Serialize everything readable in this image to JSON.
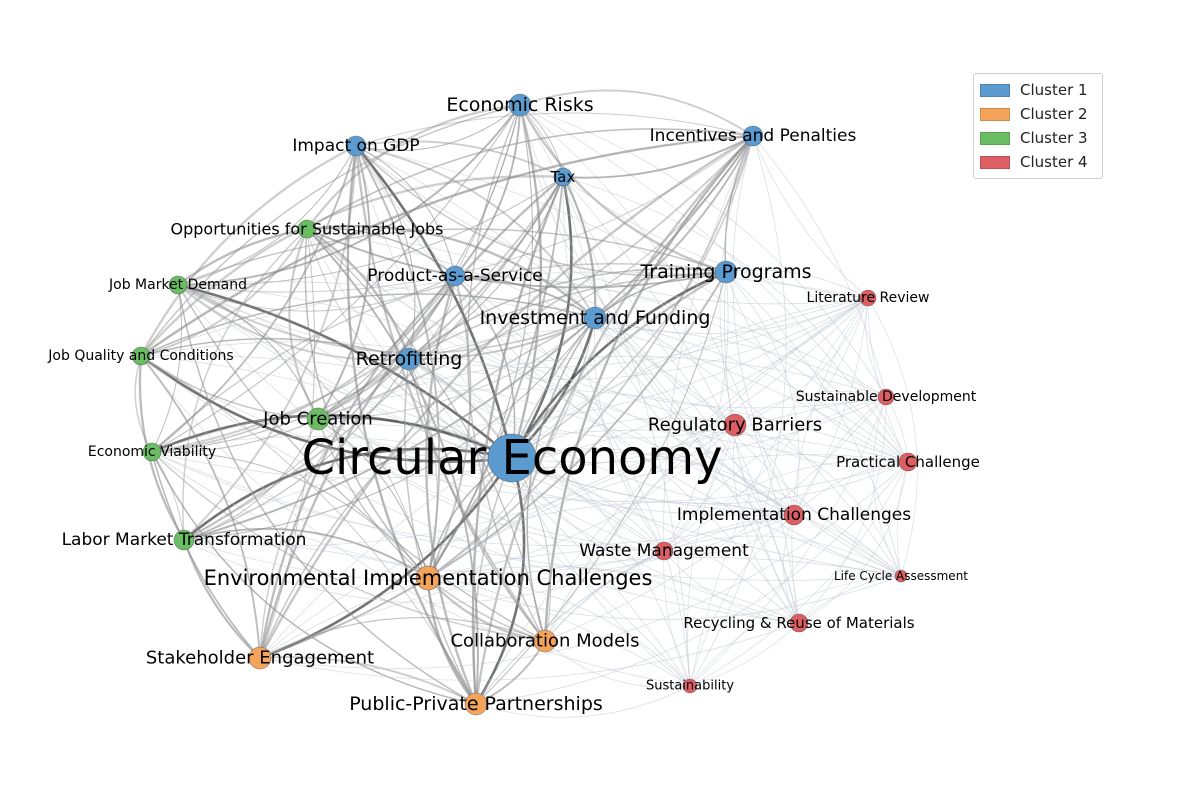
{
  "clusters": [
    {
      "name": "Cluster 1",
      "color": "#5b9bd0"
    },
    {
      "name": "Cluster 2",
      "color": "#f4a35a"
    },
    {
      "name": "Cluster 3",
      "color": "#6bbd63"
    },
    {
      "name": "Cluster 4",
      "color": "#de5f63"
    }
  ],
  "nodes": [
    {
      "id": "ce",
      "label": "Circular Economy",
      "cluster": 1
    },
    {
      "id": "er",
      "label": "Economic Risks",
      "cluster": 1
    },
    {
      "id": "gdp",
      "label": "Impact on GDP",
      "cluster": 1
    },
    {
      "id": "ip",
      "label": "Incentives and Penalties",
      "cluster": 1
    },
    {
      "id": "tax",
      "label": "Tax",
      "cluster": 1
    },
    {
      "id": "paas",
      "label": "Product-as-a-Service",
      "cluster": 1
    },
    {
      "id": "tp",
      "label": "Training Programs",
      "cluster": 1
    },
    {
      "id": "if",
      "label": "Investment and Funding",
      "cluster": 1
    },
    {
      "id": "ret",
      "label": "Retrofitting",
      "cluster": 1
    },
    {
      "id": "osj",
      "label": "Opportunities for Sustainable Jobs",
      "cluster": 3
    },
    {
      "id": "jmd",
      "label": "Job Market Demand",
      "cluster": 3
    },
    {
      "id": "jqc",
      "label": "Job Quality and Conditions",
      "cluster": 3
    },
    {
      "id": "jc",
      "label": "Job Creation",
      "cluster": 3
    },
    {
      "id": "ev",
      "label": "Economic Viability",
      "cluster": 3
    },
    {
      "id": "lmt",
      "label": "Labor Market Transformation",
      "cluster": 3
    },
    {
      "id": "eic",
      "label": "Environmental Implementation Challenges",
      "cluster": 2
    },
    {
      "id": "se",
      "label": "Stakeholder Engagement",
      "cluster": 2
    },
    {
      "id": "cm",
      "label": "Collaboration Models",
      "cluster": 2
    },
    {
      "id": "ppp",
      "label": "Public-Private Partnerships",
      "cluster": 2
    },
    {
      "id": "lr",
      "label": "Literature Review",
      "cluster": 4
    },
    {
      "id": "sd",
      "label": "Sustainable Development",
      "cluster": 4
    },
    {
      "id": "rb",
      "label": "Regulatory Barriers",
      "cluster": 4
    },
    {
      "id": "pc",
      "label": "Practical Challenge",
      "cluster": 4
    },
    {
      "id": "ic",
      "label": "Implementation Challenges",
      "cluster": 4
    },
    {
      "id": "wm",
      "label": "Waste Management",
      "cluster": 4
    },
    {
      "id": "lca",
      "label": "Life Cycle Assessment",
      "cluster": 4
    },
    {
      "id": "rrm",
      "label": "Recycling & Reuse of Materials",
      "cluster": 4
    },
    {
      "id": "sus",
      "label": "Sustainability",
      "cluster": 4
    }
  ]
}
